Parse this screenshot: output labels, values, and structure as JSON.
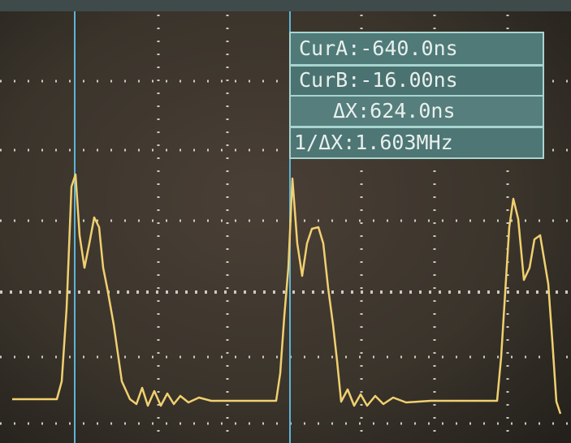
{
  "cursor_readouts": [
    "CurA:-640.0ns",
    "CurB:-16.00ns",
    "ΔX:624.0ns",
    "1/ΔX:1.603MHz"
  ]
}
